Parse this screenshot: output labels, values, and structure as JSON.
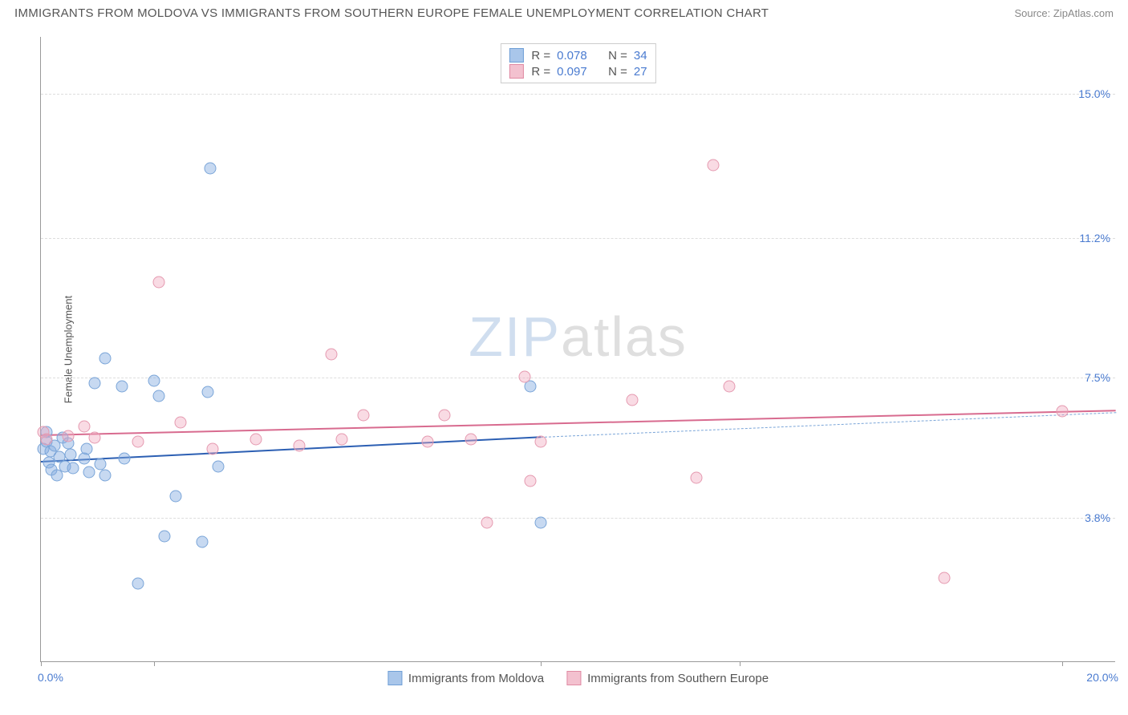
{
  "header": {
    "title": "IMMIGRANTS FROM MOLDOVA VS IMMIGRANTS FROM SOUTHERN EUROPE FEMALE UNEMPLOYMENT CORRELATION CHART",
    "source_label": "Source: ",
    "source_value": "ZipAtlas.com"
  },
  "chart": {
    "type": "scatter",
    "y_axis_label": "Female Unemployment",
    "background_color": "#ffffff",
    "grid_color": "#dddddd",
    "axis_color": "#999999",
    "xlim": [
      0,
      20
    ],
    "ylim": [
      0,
      16.5
    ],
    "x_ticks": [
      0,
      2.1,
      9.3,
      13.0,
      19.0
    ],
    "x_range_min_label": "0.0%",
    "x_range_max_label": "20.0%",
    "y_gridlines": [
      {
        "value": 3.8,
        "label": "3.8%"
      },
      {
        "value": 7.5,
        "label": "7.5%"
      },
      {
        "value": 11.2,
        "label": "11.2%"
      },
      {
        "value": 15.0,
        "label": "15.0%"
      }
    ],
    "watermark": {
      "part1": "ZIP",
      "part2": "atlas"
    },
    "series": [
      {
        "id": "moldova",
        "label": "Immigrants from Moldova",
        "fill_color": "rgba(130,170,225,0.45)",
        "stroke_color": "#7aa5d8",
        "swatch_fill": "#a9c6ea",
        "swatch_stroke": "#6f9fd6",
        "trend_color": "#2c5fb3",
        "trend": {
          "x1": 0.0,
          "y1": 5.3,
          "x2": 9.3,
          "y2": 5.95,
          "x_extend": 20.0,
          "y_extend": 6.6
        },
        "R": "0.078",
        "N": "34",
        "marker_radius": 7.5,
        "points": [
          [
            0.05,
            5.6
          ],
          [
            0.1,
            5.8
          ],
          [
            0.1,
            6.05
          ],
          [
            0.15,
            5.25
          ],
          [
            0.18,
            5.55
          ],
          [
            0.2,
            5.05
          ],
          [
            0.25,
            5.7
          ],
          [
            0.3,
            4.9
          ],
          [
            0.35,
            5.4
          ],
          [
            0.4,
            5.9
          ],
          [
            0.45,
            5.15
          ],
          [
            0.5,
            5.75
          ],
          [
            0.55,
            5.45
          ],
          [
            0.6,
            5.1
          ],
          [
            0.8,
            5.35
          ],
          [
            0.85,
            5.6
          ],
          [
            0.9,
            5.0
          ],
          [
            1.0,
            7.35
          ],
          [
            1.1,
            5.2
          ],
          [
            1.2,
            8.0
          ],
          [
            1.2,
            4.9
          ],
          [
            1.5,
            7.25
          ],
          [
            1.55,
            5.35
          ],
          [
            1.8,
            2.05
          ],
          [
            2.1,
            7.4
          ],
          [
            2.2,
            7.0
          ],
          [
            2.3,
            3.3
          ],
          [
            2.5,
            4.35
          ],
          [
            3.0,
            3.15
          ],
          [
            3.1,
            7.1
          ],
          [
            3.15,
            13.0
          ],
          [
            3.3,
            5.15
          ],
          [
            9.1,
            7.25
          ],
          [
            9.3,
            3.65
          ]
        ]
      },
      {
        "id": "southern-europe",
        "label": "Immigrants from Southern Europe",
        "fill_color": "rgba(240,170,190,0.42)",
        "stroke_color": "#e59ab0",
        "swatch_fill": "#f3c1cf",
        "swatch_stroke": "#e08aa3",
        "trend_color": "#d86b8f",
        "trend": {
          "x1": 0.0,
          "y1": 6.0,
          "x2": 20.0,
          "y2": 6.65
        },
        "R": "0.097",
        "N": "27",
        "marker_radius": 7.5,
        "points": [
          [
            0.05,
            6.05
          ],
          [
            0.1,
            5.85
          ],
          [
            0.5,
            5.95
          ],
          [
            0.8,
            6.2
          ],
          [
            1.0,
            5.9
          ],
          [
            1.8,
            5.8
          ],
          [
            2.2,
            10.0
          ],
          [
            2.6,
            6.3
          ],
          [
            3.2,
            5.6
          ],
          [
            4.0,
            5.85
          ],
          [
            4.8,
            5.7
          ],
          [
            5.4,
            8.1
          ],
          [
            5.6,
            5.85
          ],
          [
            6.0,
            6.5
          ],
          [
            7.2,
            5.8
          ],
          [
            7.5,
            6.5
          ],
          [
            8.0,
            5.85
          ],
          [
            8.3,
            3.65
          ],
          [
            9.0,
            7.5
          ],
          [
            9.1,
            4.75
          ],
          [
            9.3,
            5.8
          ],
          [
            11.0,
            6.9
          ],
          [
            12.2,
            4.85
          ],
          [
            12.5,
            13.1
          ],
          [
            12.8,
            7.25
          ],
          [
            16.8,
            2.2
          ],
          [
            19.0,
            6.6
          ]
        ]
      }
    ],
    "legend_top": {
      "r_label": "R =",
      "n_label": "N ="
    }
  }
}
